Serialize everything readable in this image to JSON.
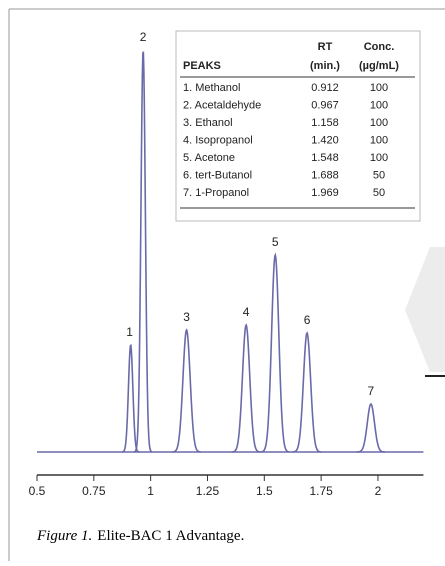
{
  "chart_data": {
    "type": "chromatogram",
    "color": "#6a6aa8",
    "xlim": [
      0.5,
      2.2
    ],
    "xticks": [
      0.5,
      0.75,
      1,
      1.25,
      1.5,
      1.75,
      2
    ],
    "ylim": [
      0,
      420
    ],
    "peaks": {
      "labels": [
        "1",
        "2",
        "3",
        "4",
        "5",
        "6",
        "7"
      ],
      "x": [
        0.912,
        0.967,
        1.158,
        1.42,
        1.548,
        1.688,
        1.969
      ],
      "values": [
        107,
        402,
        122,
        127,
        197,
        119,
        48
      ]
    }
  },
  "peak_table": {
    "header": [
      [
        "",
        "RT",
        "Conc."
      ],
      [
        "PEAKS",
        "(min.)",
        "(µg/mL)"
      ]
    ],
    "rows": [
      [
        "1. Methanol",
        "0.912",
        "100"
      ],
      [
        "2. Acetaldehyde",
        "0.967",
        "100"
      ],
      [
        "3. Ethanol",
        "1.158",
        "100"
      ],
      [
        "4. Isopropanol",
        "1.420",
        "100"
      ],
      [
        "5. Acetone",
        "1.548",
        "100"
      ],
      [
        "6. tert-Butanol",
        "1.688",
        "50"
      ],
      [
        "7. 1-Propanol",
        "1.969",
        "50"
      ]
    ]
  },
  "caption": {
    "label": "Figure 1.",
    "text": "Elite-BAC 1 Advantage."
  }
}
